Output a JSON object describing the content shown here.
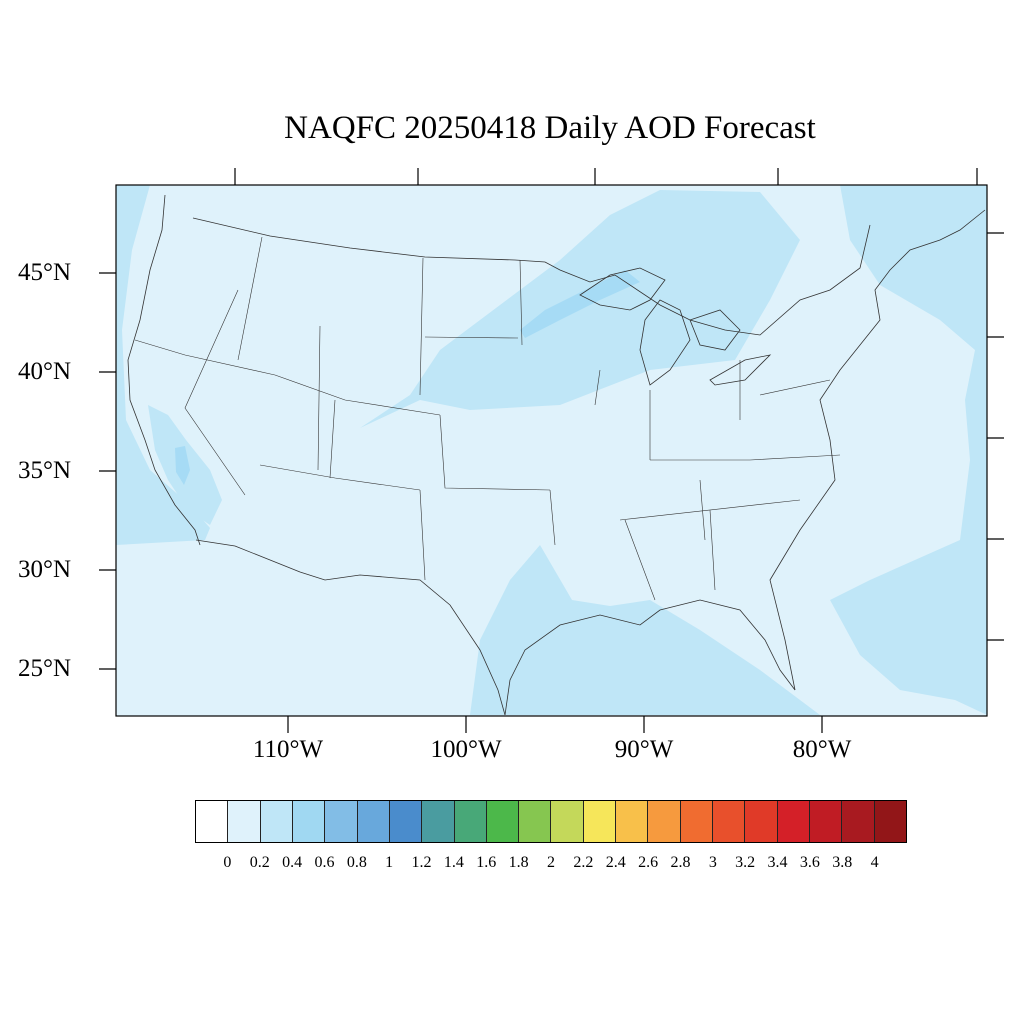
{
  "title": "NAQFC 20250418 Daily AOD Forecast",
  "map": {
    "region": "Contiguous United States",
    "projection": "Lambert conformal (approx.)",
    "lat_labels": [
      "45°N",
      "40°N",
      "35°N",
      "30°N",
      "25°N"
    ],
    "lon_labels": [
      "110°W",
      "100°W",
      "90°W",
      "80°W"
    ],
    "background_fill": "#dff2fb",
    "overlay_colors": {
      "aod_0_2_0_4": "#bfe6f7",
      "aod_0_4_0_6": "#a6dbf5"
    }
  },
  "colorbar": {
    "ticks": [
      "0",
      "0.2",
      "0.4",
      "0.6",
      "0.8",
      "1",
      "1.2",
      "1.4",
      "1.6",
      "1.8",
      "2",
      "2.2",
      "2.4",
      "2.6",
      "2.8",
      "3",
      "3.2",
      "3.4",
      "3.6",
      "3.8",
      "4"
    ],
    "colors": [
      "#ffffff",
      "#dff2fb",
      "#bfe6f7",
      "#a0d8f2",
      "#82bde6",
      "#68a8dc",
      "#4a8ccc",
      "#4a9ca0",
      "#48a878",
      "#4cb84a",
      "#86c650",
      "#c4d85a",
      "#f6e65a",
      "#f8c04a",
      "#f69a3e",
      "#f06c30",
      "#e8502c",
      "#e03a28",
      "#d42028",
      "#c01c24",
      "#a81a20",
      "#921618"
    ]
  }
}
